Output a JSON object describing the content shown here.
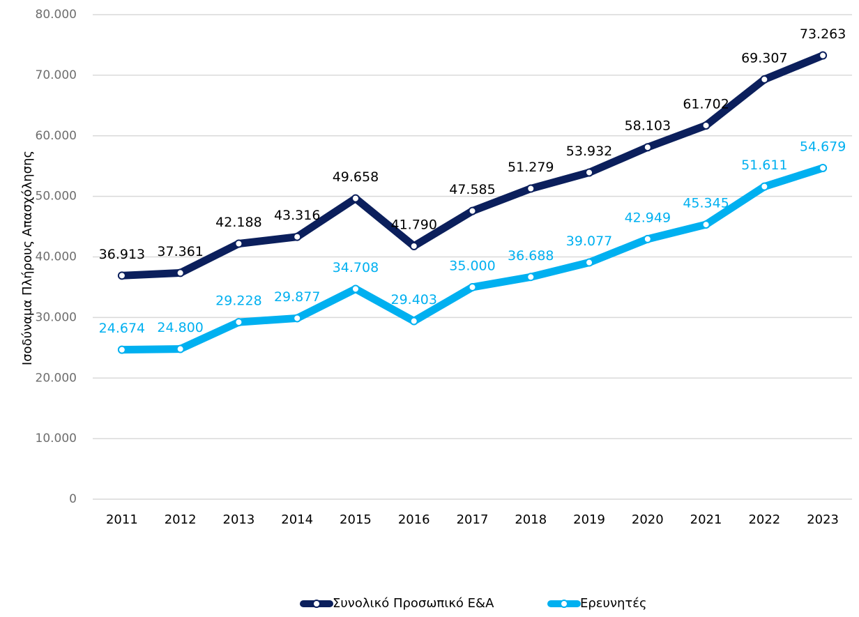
{
  "chart_data": {
    "type": "line",
    "y_label": "Ισοδύναμα Πλήρους Απασχόλησης",
    "categories": [
      "2011",
      "2012",
      "2013",
      "2014",
      "2015",
      "2016",
      "2017",
      "2018",
      "2019",
      "2020",
      "2021",
      "2022",
      "2023"
    ],
    "series": [
      {
        "name": "Συνολικό Προσωπικό Ε&Α",
        "color": "#0b1f5c",
        "label_color": "#000000",
        "values": [
          36913,
          37361,
          42188,
          43316,
          49658,
          41790,
          47585,
          51279,
          53932,
          58103,
          61702,
          69307,
          73263
        ],
        "value_labels": [
          "36.913",
          "37.361",
          "42.188",
          "43.316",
          "49.658",
          "41.790",
          "47.585",
          "51.279",
          "53.932",
          "58.103",
          "61.702",
          "69.307",
          "73.263"
        ]
      },
      {
        "name": "Ερευνητές",
        "color": "#00b0f0",
        "label_color": "#00b0f0",
        "values": [
          24674,
          24800,
          29228,
          29877,
          34708,
          29403,
          35000,
          36688,
          39077,
          42949,
          45345,
          51611,
          54679
        ],
        "value_labels": [
          "24.674",
          "24.800",
          "29.228",
          "29.877",
          "34.708",
          "29.403",
          "35.000",
          "36.688",
          "39.077",
          "42.949",
          "45.345",
          "51.611",
          "54.679"
        ]
      }
    ],
    "ylim": [
      0,
      80000
    ],
    "yticks": [
      0,
      {
        "value": 10000,
        "label": "10.000"
      },
      {
        "value": 20000,
        "label": "20.000"
      },
      {
        "value": 30000,
        "label": "30.000"
      },
      {
        "value": 40000,
        "label": "40.000"
      },
      {
        "value": 50000,
        "label": "50.000"
      },
      {
        "value": 60000,
        "label": "60.000"
      },
      {
        "value": 70000,
        "label": "70.000"
      },
      {
        "value": 80000,
        "label": "80.000"
      }
    ],
    "grid": true,
    "legend": "bottom"
  }
}
